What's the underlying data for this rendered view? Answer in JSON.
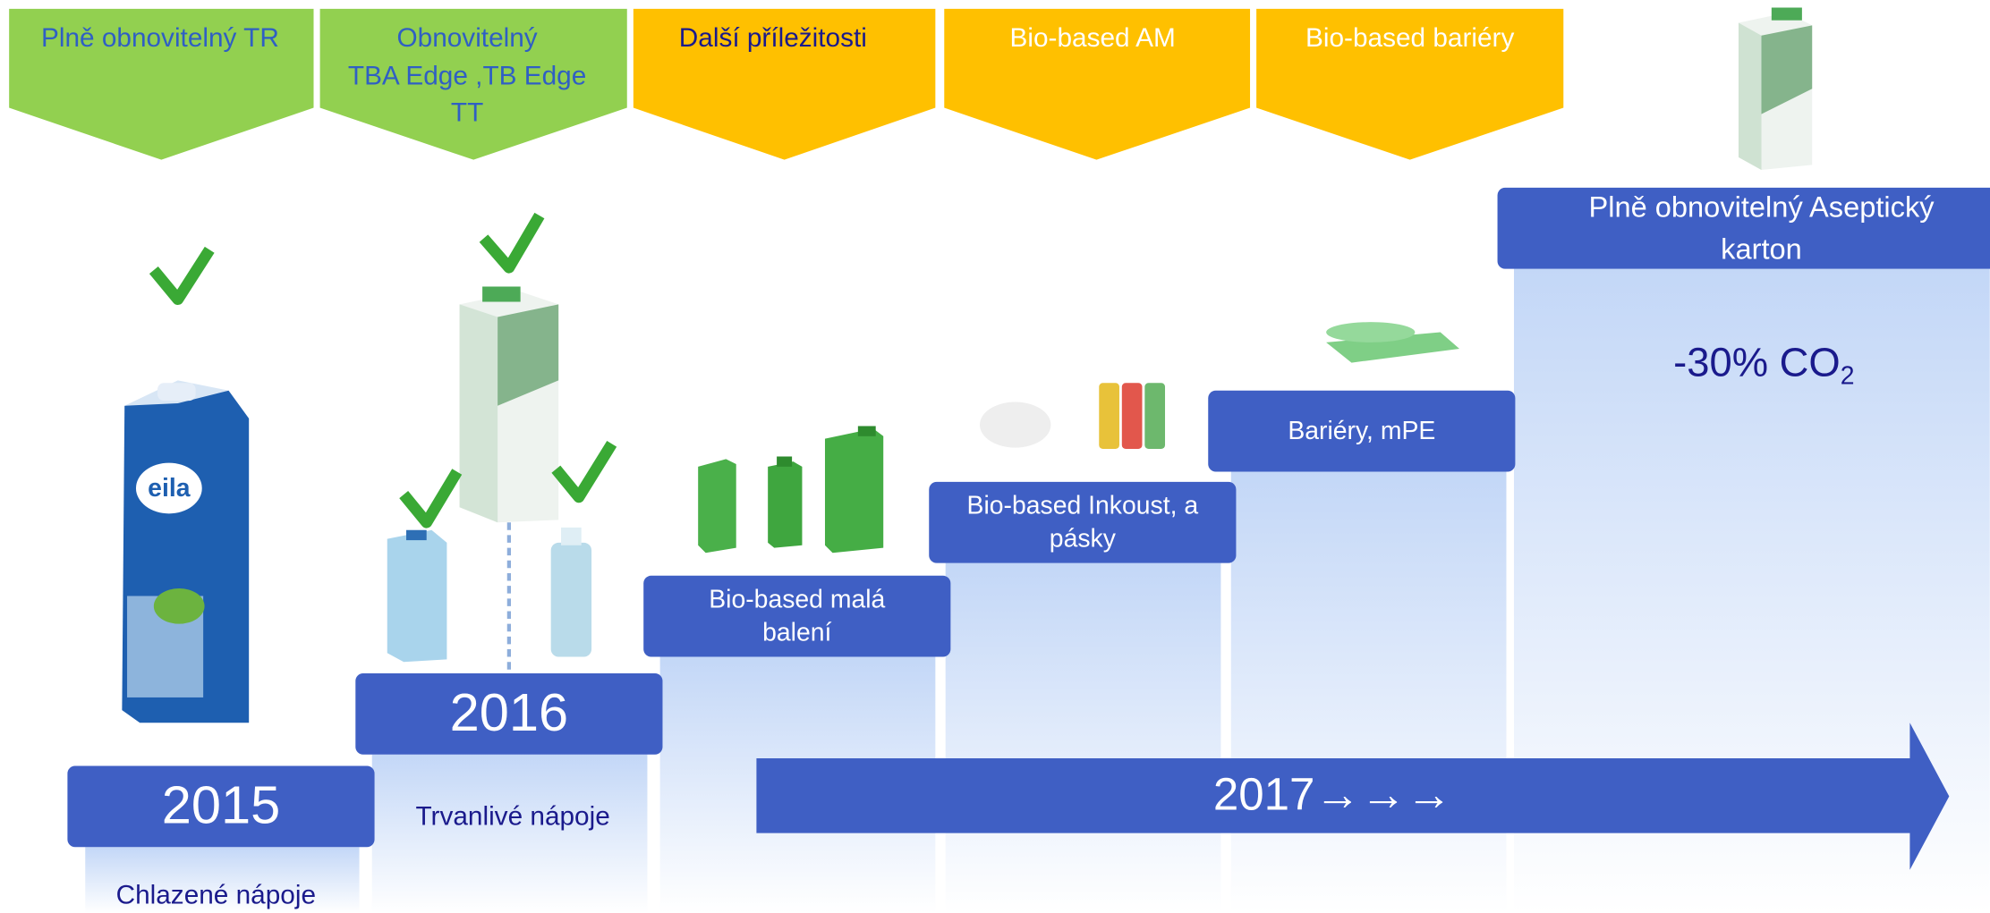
{
  "headers": [
    {
      "lines": [
        "Plně obnovitelný TR"
      ]
    },
    {
      "lines": [
        "Obnovitelný",
        "TBA  Edge ,TB Edge",
        "TT"
      ]
    },
    {
      "lines": [
        "Další příležitosti"
      ]
    },
    {
      "lines": [
        "Bio-based AM"
      ]
    },
    {
      "lines": [
        "Bio-based bariéry"
      ]
    }
  ],
  "steps": [
    {
      "box": [
        "2015"
      ],
      "caption": "Chlazené nápoje"
    },
    {
      "box": [
        "2016"
      ],
      "caption": "Trvanlivé nápoje"
    },
    {
      "box": [
        "Bio-based malá",
        "balení"
      ]
    },
    {
      "box": [
        "Bio-based  Inkoust, a",
        "pásky"
      ]
    },
    {
      "box": [
        "Bariéry, mPE"
      ]
    },
    {
      "box": [
        "Plně obnovitelný Aseptický",
        "karton"
      ]
    }
  ],
  "co2": {
    "text": "-30% CO",
    "sub": "2"
  },
  "arrow": "2017→→→"
}
